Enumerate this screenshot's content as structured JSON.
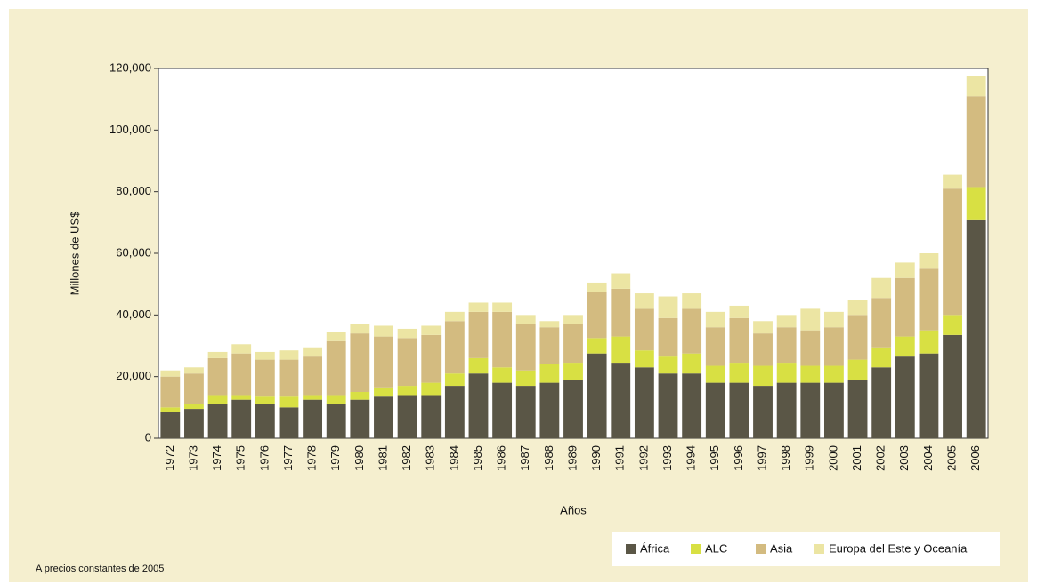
{
  "chart_data": {
    "type": "bar",
    "stacked": true,
    "ylabel": "Millones de US$",
    "xlabel": "Años",
    "note": "A precios constantes de 2005",
    "categories": [
      "1972",
      "1973",
      "1974",
      "1975",
      "1976",
      "1977",
      "1978",
      "1979",
      "1980",
      "1981",
      "1982",
      "1983",
      "1984",
      "1985",
      "1986",
      "1987",
      "1988",
      "1989",
      "1990",
      "1991",
      "1992",
      "1993",
      "1994",
      "1995",
      "1996",
      "1997",
      "1998",
      "1999",
      "2000",
      "2001",
      "2002",
      "2003",
      "2004",
      "2005",
      "2006"
    ],
    "series": [
      {
        "name": "África",
        "color": "#5a5646",
        "values": [
          8500,
          9500,
          11000,
          12500,
          11000,
          10000,
          12500,
          11000,
          12500,
          13500,
          14000,
          14000,
          17000,
          21000,
          18000,
          17000,
          18000,
          19000,
          27500,
          24500,
          23000,
          21000,
          21000,
          18000,
          18000,
          17000,
          18000,
          18000,
          18000,
          19000,
          23000,
          26500,
          27500,
          33500,
          71000
        ]
      },
      {
        "name": "ALC",
        "color": "#d8e043",
        "values": [
          1500,
          1500,
          3000,
          1500,
          2500,
          3500,
          1500,
          3000,
          2500,
          3000,
          3000,
          4000,
          4000,
          5000,
          5000,
          5000,
          6000,
          5500,
          5000,
          8500,
          5500,
          5500,
          6500,
          5500,
          6500,
          6500,
          6500,
          5500,
          5500,
          6500,
          6500,
          6500,
          7500,
          6500,
          10500
        ]
      },
      {
        "name": "Asia",
        "color": "#d3bb80",
        "values": [
          10000,
          10000,
          12000,
          13500,
          12000,
          12000,
          12500,
          17500,
          19000,
          16500,
          15500,
          15500,
          17000,
          15000,
          18000,
          15000,
          12000,
          12500,
          15000,
          15500,
          13500,
          12500,
          14500,
          12500,
          14500,
          10500,
          11500,
          11500,
          12500,
          14500,
          16000,
          19000,
          20000,
          41000,
          29500
        ]
      },
      {
        "name": "Europa del Este y Oceanía",
        "color": "#ece5a3",
        "values": [
          2000,
          2000,
          2000,
          3000,
          2500,
          3000,
          3000,
          3000,
          3000,
          3500,
          3000,
          3000,
          3000,
          3000,
          3000,
          3000,
          2000,
          3000,
          3000,
          5000,
          5000,
          7000,
          5000,
          5000,
          4000,
          4000,
          4000,
          7000,
          5000,
          5000,
          6500,
          5000,
          5000,
          4500,
          6500
        ]
      }
    ],
    "ylim": [
      0,
      120000
    ],
    "yticks": [
      0,
      {
        "value": 20000,
        "label": "20,000"
      },
      {
        "value": 40000,
        "label": "40,000"
      },
      {
        "value": 60000,
        "label": "60,000"
      },
      {
        "value": 80000,
        "label": "80,000"
      },
      {
        "value": 100000,
        "label": "100,000"
      },
      {
        "value": 120000,
        "label": "120,000"
      }
    ],
    "legend": "bottom-right"
  }
}
